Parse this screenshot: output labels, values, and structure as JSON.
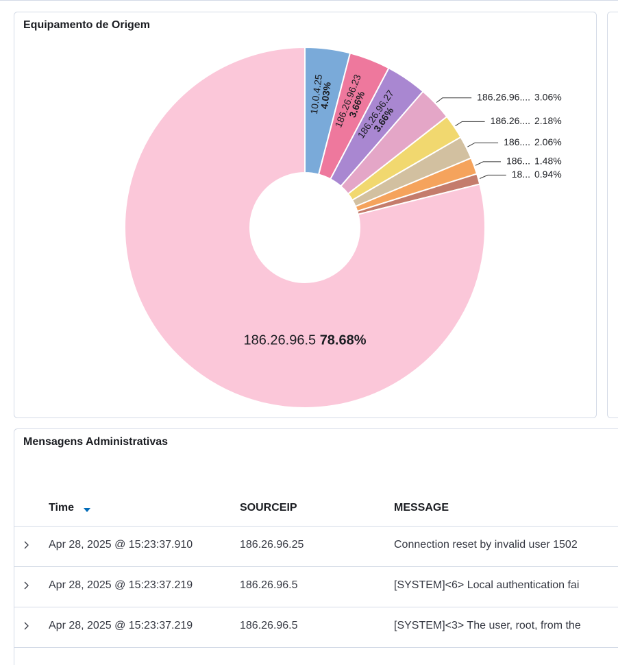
{
  "chart_data": {
    "type": "pie",
    "title": "Equipamento de Origem",
    "categories": [
      "10.0.4.25",
      "186.26.96.23",
      "186.26.96.27",
      "186.26.96....",
      "186.26....",
      "186....",
      "186...",
      "18...",
      "186.26.96.5"
    ],
    "values": [
      4.03,
      3.66,
      3.66,
      3.06,
      2.18,
      2.06,
      1.48,
      0.94,
      78.68
    ],
    "value_labels": [
      "4.03%",
      "3.66%",
      "3.66%",
      "3.06%",
      "2.18%",
      "2.06%",
      "1.48%",
      "0.94%",
      "78.68%"
    ],
    "colors": [
      "#7aaad9",
      "#ee789d",
      "#a987d1",
      "#e4a6c7",
      "#f1d86f",
      "#d2c0a0",
      "#f5a35c",
      "#c47c6c",
      "#fbc7d9"
    ]
  },
  "table": {
    "title": "Mensagens Administrativas",
    "columns": [
      "Time",
      "SOURCEIP",
      "MESSAGE"
    ],
    "rows": [
      [
        "Apr 28, 2025 @ 15:23:37.910",
        "186.26.96.25",
        "Connection reset by invalid user 1502"
      ],
      [
        "Apr 28, 2025 @ 15:23:37.219",
        "186.26.96.5",
        "[SYSTEM]<6> Local authentication fai"
      ],
      [
        "Apr 28, 2025 @ 15:23:37.219",
        "186.26.96.5",
        "[SYSTEM]<3> The user, root, from the"
      ]
    ]
  }
}
